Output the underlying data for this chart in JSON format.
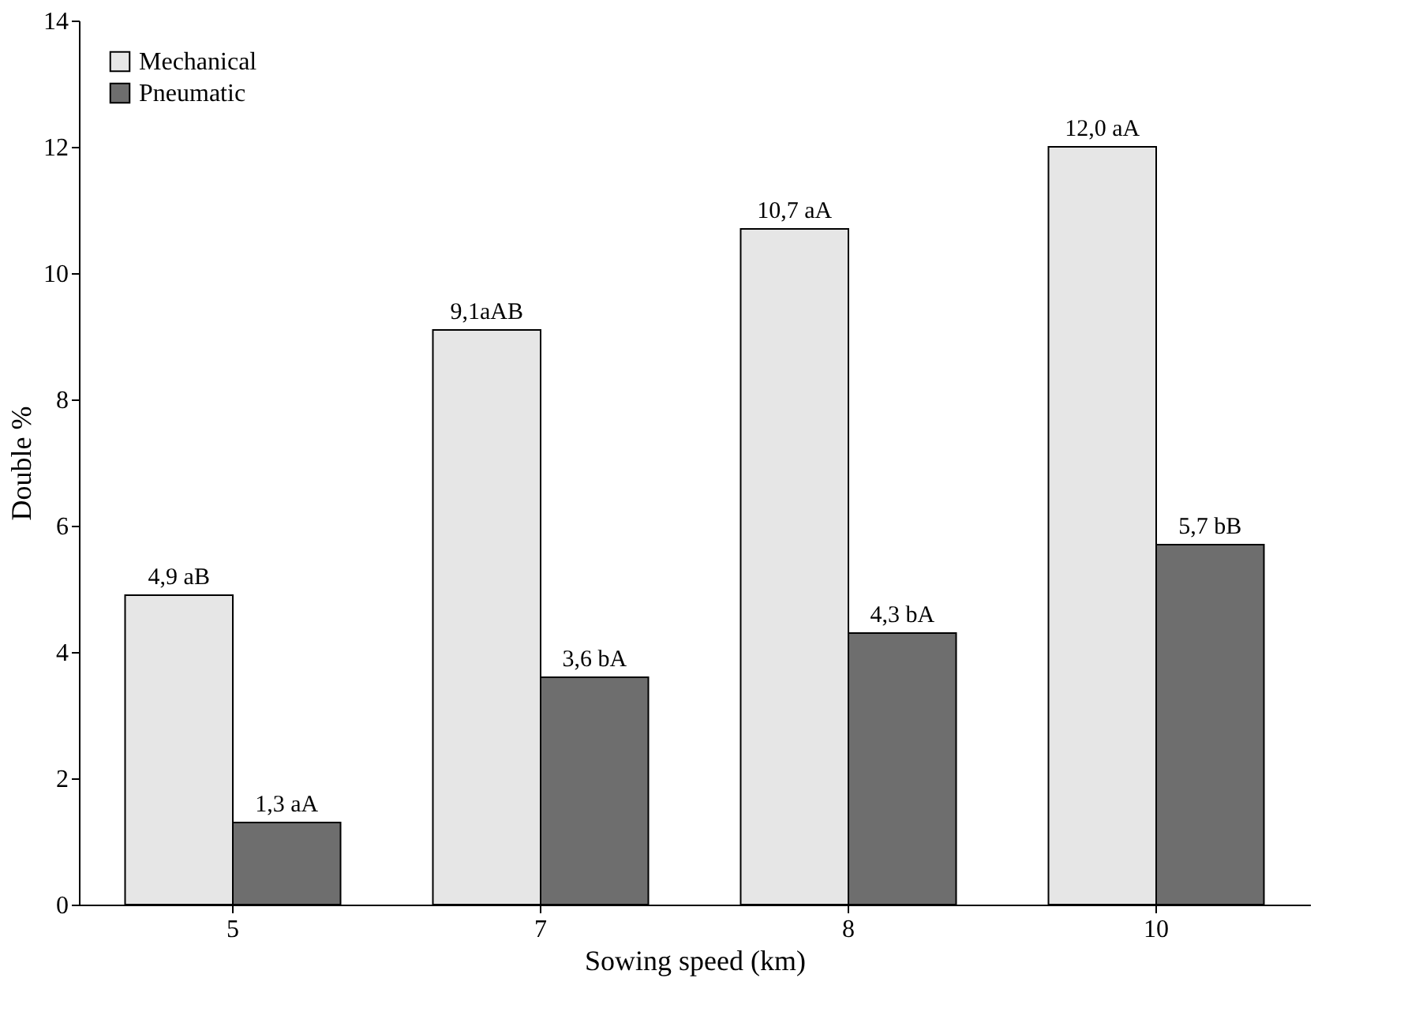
{
  "chart_data": {
    "type": "bar",
    "xlabel": "Sowing speed (km)",
    "ylabel": "Double %",
    "categories": [
      "5",
      "7",
      "8",
      "10"
    ],
    "series": [
      {
        "name": "Mechanical",
        "color": "#e6e6e6",
        "values": [
          4.9,
          9.1,
          10.7,
          12.0
        ],
        "value_labels": [
          "4,9 aB",
          "9,1aAB",
          "10,7 aA",
          "12,0 aA"
        ]
      },
      {
        "name": "Pneumatic",
        "color": "#6e6e6e",
        "values": [
          1.3,
          3.6,
          4.3,
          5.7
        ],
        "value_labels": [
          "1,3 aA",
          "3,6 bA",
          "4,3 bA",
          "5,7 bB"
        ]
      }
    ],
    "ylim": [
      0,
      14
    ],
    "yticks": [
      0,
      2,
      4,
      6,
      8,
      10,
      12,
      14
    ],
    "grid": false,
    "legend": "top left"
  }
}
